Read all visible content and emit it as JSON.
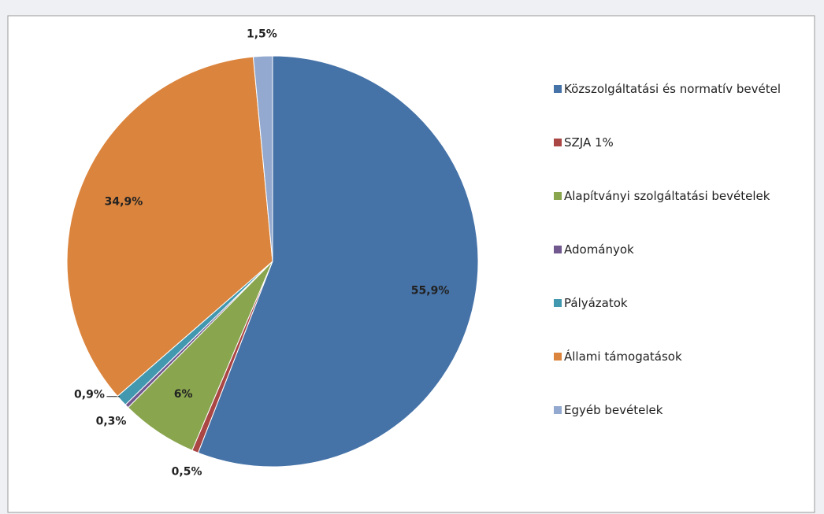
{
  "chart_data": {
    "type": "pie",
    "categories": [
      "Közszolgáltatási és normatív bevétel",
      "SZJA 1%",
      "Alapítványi szolgáltatási bevételek",
      "Adományok",
      "Pályázatok",
      "Állami támogatások",
      "Egyéb bevételek"
    ],
    "values": [
      55.9,
      0.5,
      6,
      0.3,
      0.9,
      34.9,
      1.5
    ],
    "value_labels": [
      "55,9%",
      "0,5%",
      "6%",
      "0,3%",
      "0,9%",
      "34,9%",
      "1,5%"
    ],
    "colors": [
      "#4572a7",
      "#aa4643",
      "#89a54e",
      "#71588f",
      "#4198af",
      "#db843d",
      "#93a9cf"
    ],
    "legend": "right"
  }
}
